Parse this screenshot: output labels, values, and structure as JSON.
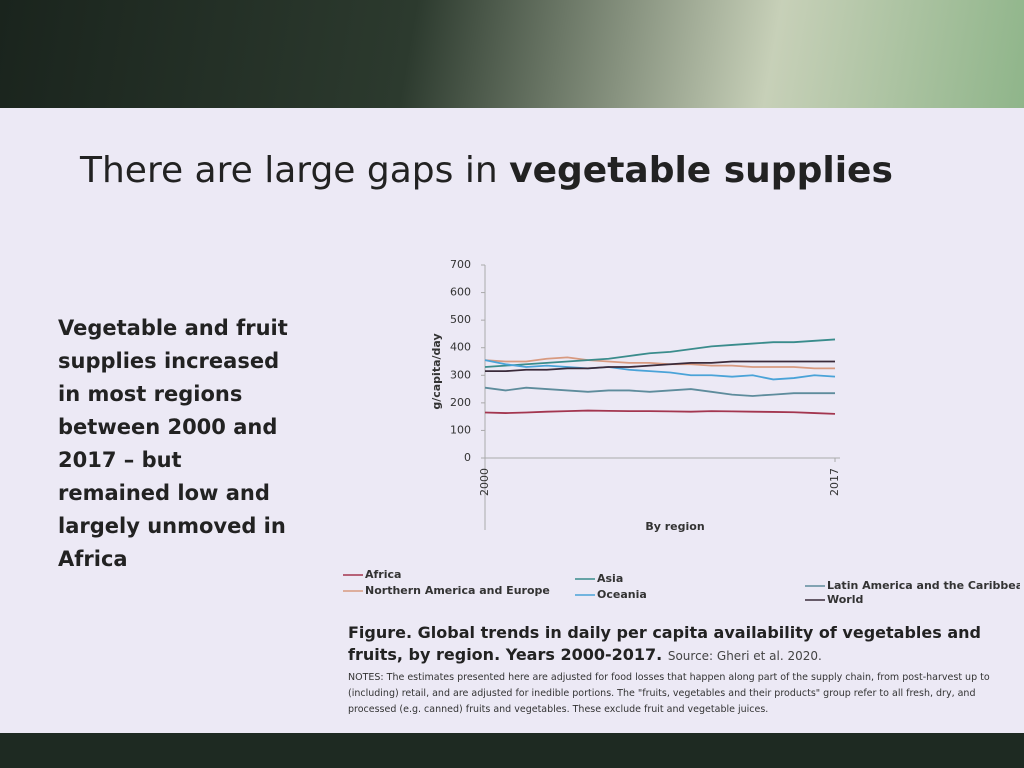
{
  "slide": {
    "title_regular": "There are large gaps in ",
    "title_bold": "vegetable supplies",
    "summary": "Vegetable and fruit supplies increased in most regions between 2000 and 2017 – but remained low and largely unmoved in Africa",
    "caption": "Figure. Global trends in daily per capita availability of vegetables and fruits, by region. Years 2000-2017.",
    "source": "Source: Gheri et al. 2020.",
    "notes": "NOTES: The estimates presented here are adjusted for food losses that happen along part of the supply chain, from post-harvest up to (including) retail, and are adjusted for inedible portions. The \"fruits, vegetables and their products\" group refer to all fresh, dry, and processed (e.g. canned) fruits and vegetables. These exclude fruit and vegetable juices."
  },
  "chart_data": {
    "type": "line",
    "x_label": "By region",
    "y_label": "g/capita/day",
    "x": [
      2000,
      2001,
      2002,
      2003,
      2004,
      2005,
      2006,
      2007,
      2008,
      2009,
      2010,
      2011,
      2012,
      2013,
      2014,
      2015,
      2016,
      2017
    ],
    "xlim": [
      2000,
      2017
    ],
    "xticks": [
      2000,
      2017
    ],
    "ylim": [
      0,
      700
    ],
    "yticks": [
      0,
      100,
      200,
      300,
      400,
      500,
      600,
      700
    ],
    "series": [
      {
        "name": "Africa",
        "color": "#a3364f",
        "values": [
          165,
          163,
          165,
          168,
          170,
          172,
          171,
          170,
          170,
          169,
          168,
          170,
          169,
          168,
          167,
          166,
          163,
          160
        ]
      },
      {
        "name": "Northern America and Europe",
        "color": "#d89a80",
        "values": [
          355,
          350,
          350,
          360,
          365,
          355,
          350,
          345,
          345,
          340,
          340,
          335,
          335,
          330,
          330,
          330,
          325,
          325
        ]
      },
      {
        "name": "Asia",
        "color": "#3a8c8c",
        "values": [
          330,
          335,
          340,
          345,
          350,
          355,
          360,
          370,
          380,
          385,
          395,
          405,
          410,
          415,
          420,
          420,
          425,
          430
        ]
      },
      {
        "name": "Oceania",
        "color": "#4aa3d8",
        "values": [
          355,
          340,
          330,
          335,
          330,
          325,
          330,
          320,
          315,
          310,
          300,
          300,
          295,
          300,
          285,
          290,
          300,
          295
        ]
      },
      {
        "name": "Latin America and the Caribbean",
        "color": "#5e8c9c",
        "values": [
          255,
          245,
          255,
          250,
          245,
          240,
          245,
          245,
          240,
          245,
          250,
          240,
          230,
          225,
          230,
          235,
          235,
          235
        ]
      },
      {
        "name": "World",
        "color": "#3a2a3a",
        "values": [
          315,
          315,
          320,
          320,
          325,
          325,
          330,
          330,
          335,
          340,
          345,
          345,
          350,
          350,
          350,
          350,
          350,
          350
        ]
      }
    ]
  }
}
